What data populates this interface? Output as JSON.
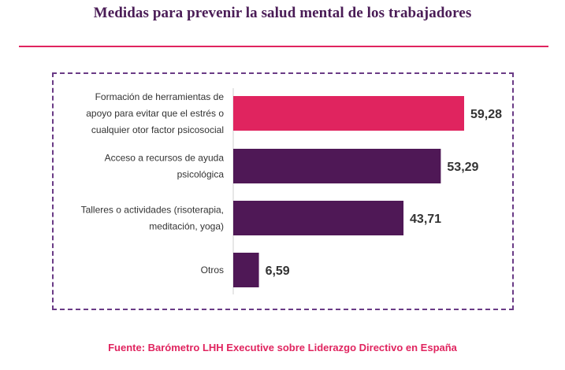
{
  "header": {
    "title": "Medidas para prevenir la salud mental de los trabajadores"
  },
  "footer": {
    "source": "Fuente: Barómetro LHH Executive sobre Liderazgo Directivo en España"
  },
  "colors": {
    "accent": "#e0245f",
    "primary_bar": "#e0245f",
    "bar": "#4f1856",
    "title": "#4a1c56",
    "frame": "#6a3b86"
  },
  "chart_data": {
    "type": "bar",
    "orientation": "horizontal",
    "categories": [
      [
        "Formación de herramientas de",
        "apoyo para evitar que el estrés o",
        "cualquier otor factor psicosocial"
      ],
      [
        "Acceso a recursos de ayuda",
        "psicológica"
      ],
      [
        "Talleres o actividades (risoterapia,",
        "meditación, yoga)"
      ],
      [
        "Otros"
      ]
    ],
    "values": [
      59.28,
      53.29,
      43.71,
      6.59
    ],
    "value_labels": [
      "59,28",
      "53,29",
      "43,71",
      "6,59"
    ],
    "highlight_index": 0,
    "grid": false,
    "legend": "none"
  }
}
